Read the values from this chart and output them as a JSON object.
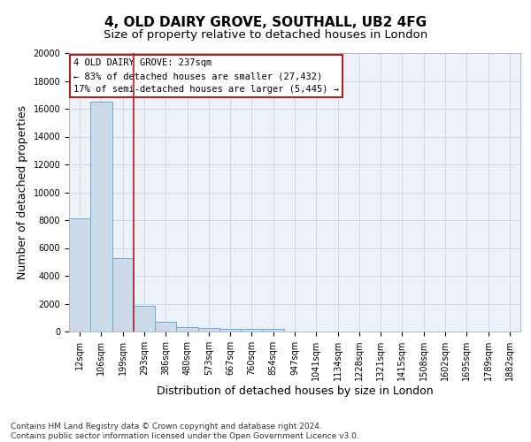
{
  "title": "4, OLD DAIRY GROVE, SOUTHALL, UB2 4FG",
  "subtitle": "Size of property relative to detached houses in London",
  "xlabel": "Distribution of detached houses by size in London",
  "ylabel": "Number of detached properties",
  "categories": [
    "12sqm",
    "106sqm",
    "199sqm",
    "293sqm",
    "386sqm",
    "480sqm",
    "573sqm",
    "667sqm",
    "760sqm",
    "854sqm",
    "947sqm",
    "1041sqm",
    "1134sqm",
    "1228sqm",
    "1321sqm",
    "1415sqm",
    "1508sqm",
    "1602sqm",
    "1695sqm",
    "1789sqm",
    "1882sqm"
  ],
  "values": [
    8100,
    16500,
    5300,
    1850,
    700,
    320,
    250,
    210,
    185,
    160,
    0,
    0,
    0,
    0,
    0,
    0,
    0,
    0,
    0,
    0,
    0
  ],
  "bar_color": "#ccdaea",
  "bar_edge_color": "#6aaad4",
  "grid_color": "#d0d8e8",
  "background_color": "#edf1f8",
  "vline_color": "#aa2222",
  "annotation_text": "4 OLD DAIRY GROVE: 237sqm\n← 83% of detached houses are smaller (27,432)\n17% of semi-detached houses are larger (5,445) →",
  "annotation_box_color": "white",
  "annotation_box_edge": "#aa2222",
  "ylim": [
    0,
    20000
  ],
  "yticks": [
    0,
    2000,
    4000,
    6000,
    8000,
    10000,
    12000,
    14000,
    16000,
    18000,
    20000
  ],
  "footnote": "Contains HM Land Registry data © Crown copyright and database right 2024.\nContains public sector information licensed under the Open Government Licence v3.0.",
  "title_fontsize": 11,
  "subtitle_fontsize": 9.5,
  "tick_fontsize": 7,
  "ylabel_fontsize": 9,
  "xlabel_fontsize": 9,
  "annotation_fontsize": 7.5,
  "footnote_fontsize": 6.5
}
